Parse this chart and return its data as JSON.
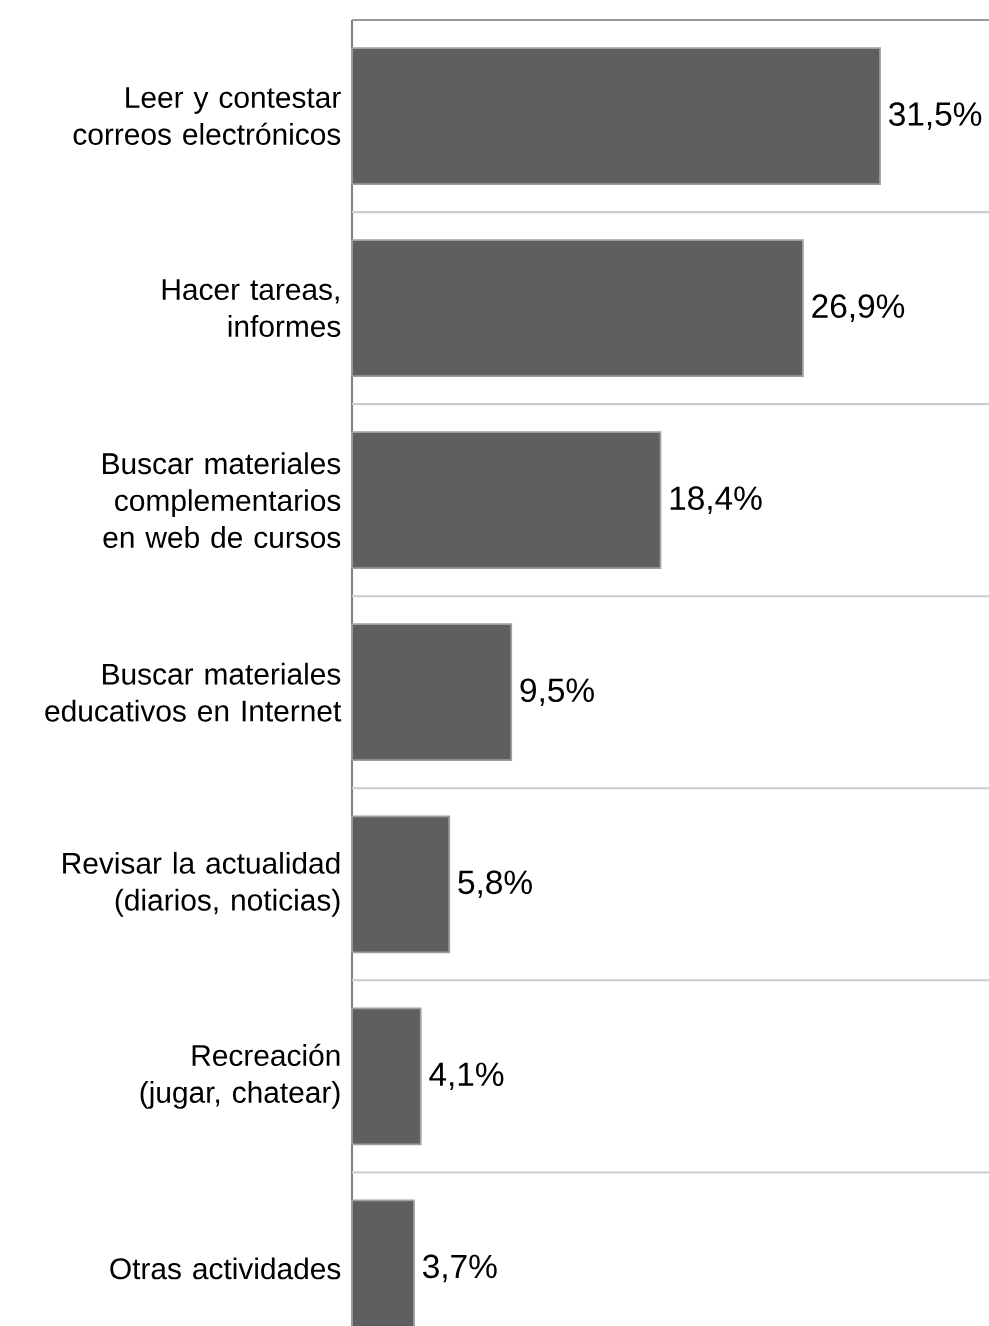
{
  "chart_data": {
    "type": "bar",
    "orientation": "horizontal",
    "categories": [
      "Leer y contestar correos electrónicos",
      "Hacer tareas, informes",
      "Buscar materiales complementarios en web de cursos",
      "Buscar materiales educativos en Internet",
      "Revisar la actualidad (diarios, noticias)",
      "Recreación (jugar, chatear)",
      "Otras actividades"
    ],
    "values": [
      31.5,
      26.9,
      18.4,
      9.5,
      5.8,
      4.1,
      3.7
    ],
    "value_labels": [
      "31,5%",
      "26,9%",
      "18,4%",
      "9,5%",
      "5,8%",
      "4,1%",
      "3,7%"
    ],
    "color": "#5f5f61",
    "xlim": [
      0,
      38
    ],
    "tick_labels": "y",
    "grid": "y"
  }
}
